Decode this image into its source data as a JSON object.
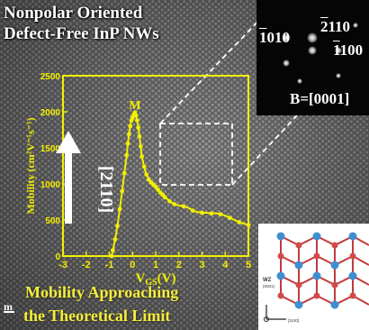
{
  "title": {
    "line1": "Nonpolar Oriented",
    "line2": "Defect-Free InP NWs"
  },
  "caption": {
    "line1": "Mobility Approaching",
    "line2": "the Theoretical Limit"
  },
  "saed": {
    "index_left": "1010",
    "index_top": "2110",
    "index_right": "1100",
    "zone_axis": "B=[0001]"
  },
  "growth_direction": "[2110]",
  "crystal_model": {
    "phase_label": "WZ",
    "sub_label": "(0001)",
    "axis_label": "[1100]"
  },
  "scale_marker": "m",
  "chart_data": {
    "type": "line",
    "xlabel": "VGS(V)",
    "xlabel_main": "V",
    "xlabel_sub": "GS",
    "xlabel_suffix": "(V)",
    "ylabel": "Mobility (cm²V⁻¹s⁻¹)",
    "xlim": [
      -3,
      5
    ],
    "ylim": [
      0,
      2500
    ],
    "x_ticks": [
      "-3",
      "-2",
      "-1",
      "0",
      "1",
      "2",
      "3",
      "4",
      "5"
    ],
    "y_ticks": [
      "0",
      "500",
      "1000",
      "1500",
      "2000",
      "2500"
    ],
    "color": "#f2f000",
    "series": [
      {
        "marker_label": "M",
        "points": [
          [
            -0.9,
            0
          ],
          [
            -0.85,
            80
          ],
          [
            -0.75,
            230
          ],
          [
            -0.65,
            420
          ],
          [
            -0.55,
            650
          ],
          [
            -0.45,
            900
          ],
          [
            -0.35,
            1150
          ],
          [
            -0.25,
            1400
          ],
          [
            -0.2,
            1560
          ],
          [
            -0.15,
            1690
          ],
          [
            -0.1,
            1800
          ],
          [
            -0.05,
            1880
          ],
          [
            0.0,
            1920
          ],
          [
            0.05,
            1960
          ],
          [
            0.1,
            1990
          ],
          [
            0.15,
            1950
          ],
          [
            0.2,
            1880
          ],
          [
            0.25,
            1780
          ],
          [
            0.3,
            1660
          ],
          [
            0.35,
            1520
          ],
          [
            0.4,
            1380
          ],
          [
            0.5,
            1240
          ],
          [
            0.6,
            1130
          ],
          [
            0.7,
            1060
          ],
          [
            0.8,
            1020
          ],
          [
            0.9,
            990
          ],
          [
            1.0,
            960
          ],
          [
            1.1,
            920
          ],
          [
            1.2,
            880
          ],
          [
            1.3,
            850
          ],
          [
            1.4,
            815
          ],
          [
            1.5,
            790
          ],
          [
            1.6,
            760
          ],
          [
            1.7,
            740
          ],
          [
            1.8,
            720
          ],
          [
            2.0,
            700
          ],
          [
            2.2,
            690
          ],
          [
            2.4,
            670
          ],
          [
            2.6,
            630
          ],
          [
            2.8,
            610
          ],
          [
            3.0,
            600
          ],
          [
            3.2,
            600
          ],
          [
            3.4,
            590
          ],
          [
            3.6,
            595
          ],
          [
            3.8,
            580
          ],
          [
            4.0,
            560
          ],
          [
            4.2,
            530
          ],
          [
            4.4,
            500
          ],
          [
            4.6,
            470
          ],
          [
            4.8,
            450
          ],
          [
            5.0,
            430
          ]
        ]
      }
    ]
  }
}
